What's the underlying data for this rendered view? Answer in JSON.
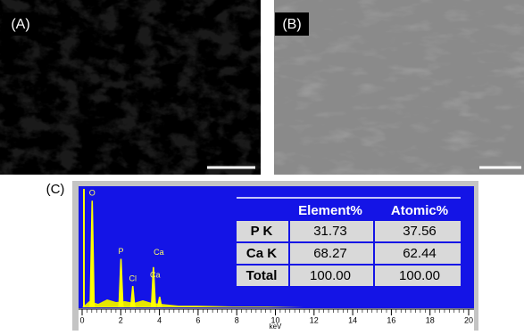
{
  "panels": {
    "a": "(A)",
    "b": "(B)",
    "c": "(C)"
  },
  "spectrum": {
    "xlabel": "keV",
    "xlim": [
      0,
      20
    ],
    "xticks": [
      0,
      2,
      4,
      6,
      8,
      10,
      12,
      14,
      16,
      18,
      20
    ],
    "ylim": [
      0,
      100
    ],
    "peaks": [
      {
        "label": "O",
        "energy": 0.52,
        "counts": 90
      },
      {
        "label": "P",
        "energy": 2.01,
        "counts": 41
      },
      {
        "label": "Cl",
        "energy": 2.62,
        "counts": 18
      },
      {
        "label": "Ca",
        "energy": 3.69,
        "counts": 34
      },
      {
        "label": "Ca",
        "energy": 4.01,
        "counts": 9
      }
    ]
  },
  "table": {
    "columns": [
      "Element%",
      "Atomic%"
    ],
    "rows": [
      [
        "P K",
        "31.73",
        "37.56"
      ],
      [
        "Ca K",
        "68.27",
        "62.44"
      ],
      [
        "Total",
        "100.00",
        "100.00"
      ]
    ]
  }
}
